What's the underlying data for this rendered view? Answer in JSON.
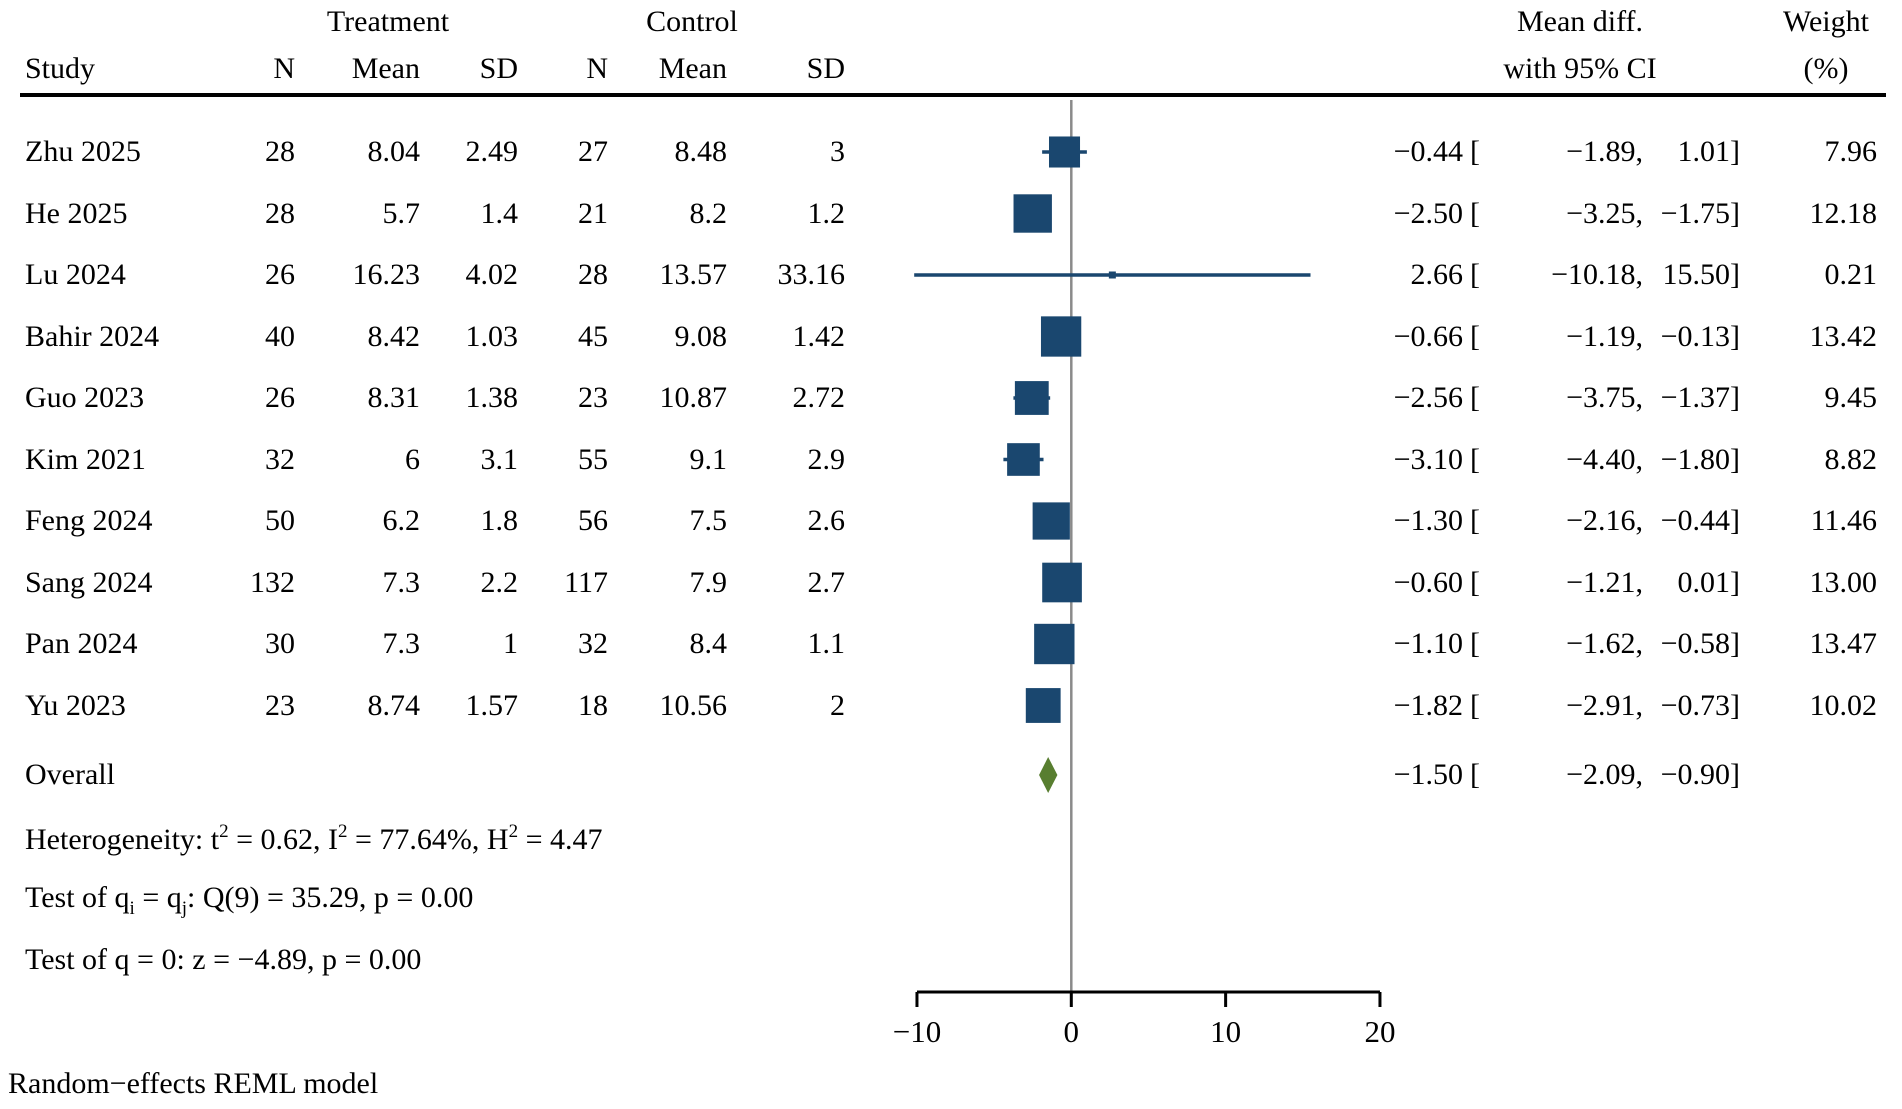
{
  "header": {
    "study": "Study",
    "treatment_group": "Treatment",
    "control_group": "Control",
    "n": "N",
    "mean": "Mean",
    "sd": "SD",
    "effect_line1": "Mean diff.",
    "effect_line2": "with 95% CI",
    "weight_line1": "Weight",
    "weight_line2": "(%)"
  },
  "chart_data": {
    "type": "forest_plot",
    "effect_measure": "Mean diff. with 95% CI",
    "x_axis": {
      "range": [
        -10,
        20
      ],
      "ticks": [
        {
          "value": -10,
          "label": "−10"
        },
        {
          "value": 0,
          "label": "0"
        },
        {
          "value": 10,
          "label": "10"
        },
        {
          "value": 20,
          "label": "20"
        }
      ],
      "zero_reference": 0
    },
    "ci_open_bracket": "[",
    "studies": [
      {
        "name": "Zhu 2025",
        "t_n": "28",
        "t_mean": "8.04",
        "t_sd": "2.49",
        "c_n": "27",
        "c_mean": "8.48",
        "c_sd": "3",
        "est": -0.44,
        "ci_low": -1.89,
        "ci_high": 1.01,
        "est_text": "−0.44",
        "ci_low_text": "−1.89,",
        "ci_high_text": "1.01]",
        "weight": 7.96,
        "weight_text": "7.96"
      },
      {
        "name": "He 2025",
        "t_n": "28",
        "t_mean": "5.7",
        "t_sd": "1.4",
        "c_n": "21",
        "c_mean": "8.2",
        "c_sd": "1.2",
        "est": -2.5,
        "ci_low": -3.25,
        "ci_high": -1.75,
        "est_text": "−2.50",
        "ci_low_text": "−3.25,",
        "ci_high_text": "−1.75]",
        "weight": 12.18,
        "weight_text": "12.18"
      },
      {
        "name": "Lu 2024",
        "t_n": "26",
        "t_mean": "16.23",
        "t_sd": "4.02",
        "c_n": "28",
        "c_mean": "13.57",
        "c_sd": "33.16",
        "est": 2.66,
        "ci_low": -10.18,
        "ci_high": 15.5,
        "est_text": "2.66",
        "ci_low_text": "−10.18,",
        "ci_high_text": "15.50]",
        "weight": 0.21,
        "weight_text": "0.21"
      },
      {
        "name": "Bahir 2024",
        "t_n": "40",
        "t_mean": "8.42",
        "t_sd": "1.03",
        "c_n": "45",
        "c_mean": "9.08",
        "c_sd": "1.42",
        "est": -0.66,
        "ci_low": -1.19,
        "ci_high": -0.13,
        "est_text": "−0.66",
        "ci_low_text": "−1.19,",
        "ci_high_text": "−0.13]",
        "weight": 13.42,
        "weight_text": "13.42"
      },
      {
        "name": "Guo 2023",
        "t_n": "26",
        "t_mean": "8.31",
        "t_sd": "1.38",
        "c_n": "23",
        "c_mean": "10.87",
        "c_sd": "2.72",
        "est": -2.56,
        "ci_low": -3.75,
        "ci_high": -1.37,
        "est_text": "−2.56",
        "ci_low_text": "−3.75,",
        "ci_high_text": "−1.37]",
        "weight": 9.45,
        "weight_text": "9.45"
      },
      {
        "name": "Kim 2021",
        "t_n": "32",
        "t_mean": "6",
        "t_sd": "3.1",
        "c_n": "55",
        "c_mean": "9.1",
        "c_sd": "2.9",
        "est": -3.1,
        "ci_low": -4.4,
        "ci_high": -1.8,
        "est_text": "−3.10",
        "ci_low_text": "−4.40,",
        "ci_high_text": "−1.80]",
        "weight": 8.82,
        "weight_text": "8.82"
      },
      {
        "name": "Feng 2024",
        "t_n": "50",
        "t_mean": "6.2",
        "t_sd": "1.8",
        "c_n": "56",
        "c_mean": "7.5",
        "c_sd": "2.6",
        "est": -1.3,
        "ci_low": -2.16,
        "ci_high": -0.44,
        "est_text": "−1.30",
        "ci_low_text": "−2.16,",
        "ci_high_text": "−0.44]",
        "weight": 11.46,
        "weight_text": "11.46"
      },
      {
        "name": "Sang 2024",
        "t_n": "132",
        "t_mean": "7.3",
        "t_sd": "2.2",
        "c_n": "117",
        "c_mean": "7.9",
        "c_sd": "2.7",
        "est": -0.6,
        "ci_low": -1.21,
        "ci_high": 0.01,
        "est_text": "−0.60",
        "ci_low_text": "−1.21,",
        "ci_high_text": "0.01]",
        "weight": 13.0,
        "weight_text": "13.00"
      },
      {
        "name": "Pan 2024",
        "t_n": "30",
        "t_mean": "7.3",
        "t_sd": "1",
        "c_n": "32",
        "c_mean": "8.4",
        "c_sd": "1.1",
        "est": -1.1,
        "ci_low": -1.62,
        "ci_high": -0.58,
        "est_text": "−1.10",
        "ci_low_text": "−1.62,",
        "ci_high_text": "−0.58]",
        "weight": 13.47,
        "weight_text": "13.47"
      },
      {
        "name": "Yu 2023",
        "t_n": "23",
        "t_mean": "8.74",
        "t_sd": "1.57",
        "c_n": "18",
        "c_mean": "10.56",
        "c_sd": "2",
        "est": -1.82,
        "ci_low": -2.91,
        "ci_high": -0.73,
        "est_text": "−1.82",
        "ci_low_text": "−2.91,",
        "ci_high_text": "−0.73]",
        "weight": 10.02,
        "weight_text": "10.02"
      }
    ],
    "overall": {
      "label": "Overall",
      "est": -1.5,
      "ci_low": -2.09,
      "ci_high": -0.9,
      "est_text": "−1.50",
      "ci_low_text": "−2.09,",
      "ci_high_text": "−0.90]"
    }
  },
  "stats": {
    "heterogeneity": [
      {
        "t": "Heterogeneity: t"
      },
      {
        "sup": "2"
      },
      {
        "t": " = 0.62, I"
      },
      {
        "sup": "2"
      },
      {
        "t": " = 77.64%, H"
      },
      {
        "sup": "2"
      },
      {
        "t": " = 4.47"
      }
    ],
    "test_q": [
      {
        "t": "Test of q"
      },
      {
        "sub": "i"
      },
      {
        "t": " = q"
      },
      {
        "sub": "j"
      },
      {
        "t": ": Q(9) = 35.29, p = 0.00"
      }
    ],
    "test_z": [
      {
        "t": "Test of q = 0: z = −4.89, p = 0.00"
      }
    ]
  },
  "footer": {
    "model_note": "Random−effects REML model"
  },
  "colors": {
    "marker": "#1a476f",
    "diamond": "#587e30",
    "reference_line": "#8a8a8a",
    "axis": "#000000"
  }
}
